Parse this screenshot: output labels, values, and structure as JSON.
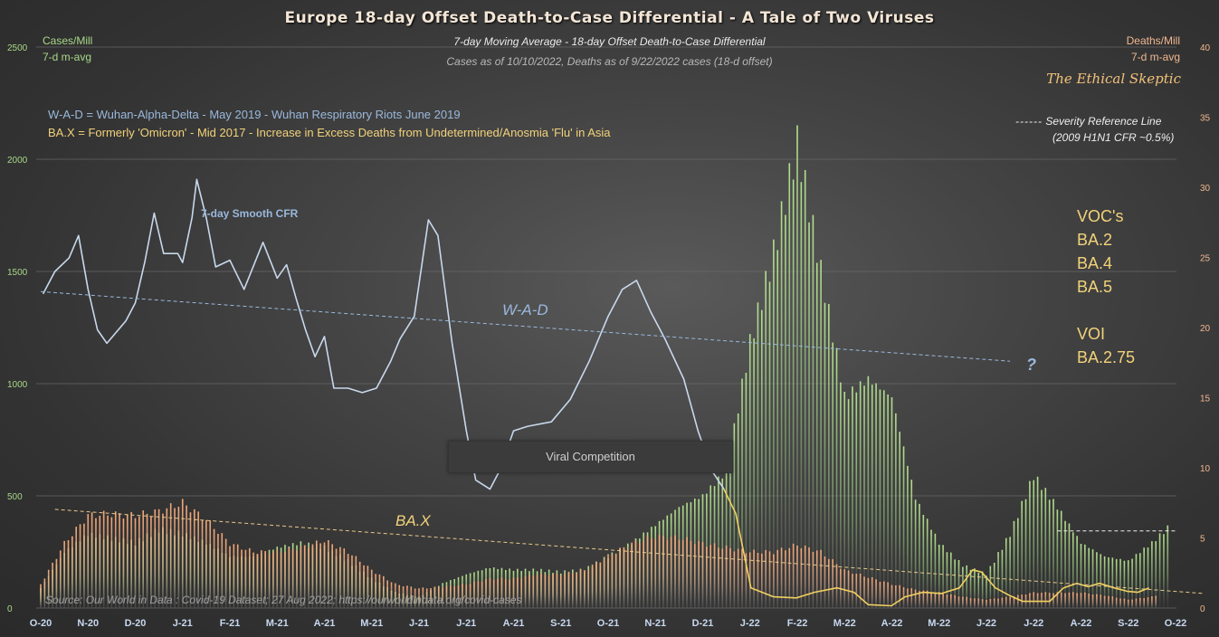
{
  "header": {
    "title": "Europe  18-day  Offset  Death-to-Case  Differential  - A  Tale  of  Two  Viruses",
    "subtitle": "7-day Moving Average - 18-day Offset Death-to-Case Differential",
    "as_of": "Cases as of 10/10/2022,  Deaths as of 9/22/2022  cases (18-d offset)",
    "brand": "The Ethical Skeptic"
  },
  "legend": {
    "wad": "W-A-D  =  Wuhan-Alpha-Delta - May 2019 - Wuhan Respiratory Riots June 2019",
    "bax": "BA.X  = Formerly  'Omicron' - Mid 2017 - Increase in Excess Deaths from Undetermined/Anosmia  'Flu' in Asia",
    "severity_1": "Severity Reference Line",
    "severity_2": "(2009 H1N1 CFR ~0.5%)"
  },
  "annotations": {
    "smooth_cfr": "7-day Smooth CFR",
    "wad_label": "W-A-D",
    "bax_label": "BA.X",
    "question": "?",
    "viral_competition": "Viral Competition",
    "source": "Source: Our World in Data : Covid-19 Dataset; 27 Aug 2022; https://ourworldindata.org/covid-cases",
    "voc": [
      "VOC's",
      "BA.2",
      "BA.4",
      "BA.5",
      "",
      "VOI",
      "BA.2.75"
    ]
  },
  "colors": {
    "cases": "#a8d888",
    "deaths": "#f0a878",
    "wad_line": "#c8d8ec",
    "bax_line": "#f0d060",
    "wad_text": "#9ab8dc",
    "bax_text": "#f2d27a"
  },
  "chart_data": {
    "type": "bar",
    "title": "Europe 18-day Offset Death-to-Case Differential - A Tale of Two Viruses",
    "ylabel_left": [
      "Cases/Mill",
      "7-d m-avg"
    ],
    "ylabel_right": [
      "Deaths/Mill",
      "7-d m-avg"
    ],
    "ylim_left": [
      0,
      2500
    ],
    "ylim_right": [
      0,
      40
    ],
    "yticks_left": [
      "0",
      "500",
      "1000",
      "1500",
      "2000",
      "2500"
    ],
    "yticks_right": [
      "0",
      "5",
      "10",
      "15",
      "20",
      "25",
      "30",
      "35",
      "40"
    ],
    "x_unit": "months since Oct 2020",
    "xticks": [
      "O-20",
      "N-20",
      "D-20",
      "J-21",
      "F-21",
      "M-21",
      "A-21",
      "M-21",
      "J-21",
      "J-21",
      "A-21",
      "S-21",
      "O-21",
      "N-21",
      "D-21",
      "J-22",
      "F-22",
      "M-22",
      "A-22",
      "M-22",
      "J-22",
      "J-22",
      "A-22",
      "S-22",
      "O-22"
    ],
    "grid": true,
    "series": [
      {
        "name": "Cases/Mill (7-d m-avg)",
        "axis": "left",
        "type": "bar",
        "x": [
          0,
          0.5,
          1,
          1.5,
          2,
          2.5,
          3,
          3.5,
          4,
          4.5,
          5,
          5.5,
          6,
          6.5,
          7,
          7.5,
          8,
          8.5,
          9,
          9.5,
          10,
          10.5,
          11,
          11.5,
          12,
          12.5,
          13,
          13.5,
          14,
          14.5,
          15,
          15.5,
          16,
          16.5,
          17,
          17.5,
          18,
          18.5,
          19,
          19.5,
          20,
          20.5,
          21,
          21.5,
          22,
          22.5,
          23,
          23.5,
          23.9
        ],
        "values": [
          90,
          250,
          330,
          310,
          290,
          350,
          330,
          290,
          230,
          230,
          270,
          290,
          270,
          210,
          130,
          70,
          50,
          110,
          150,
          180,
          170,
          170,
          160,
          170,
          230,
          290,
          370,
          450,
          500,
          610,
          1180,
          1580,
          2070,
          1500,
          940,
          1020,
          940,
          490,
          290,
          190,
          150,
          330,
          590,
          450,
          290,
          230,
          210,
          290,
          370
        ]
      },
      {
        "name": "Deaths/Mill (7-d m-avg, 18-d offset)",
        "axis": "right",
        "type": "bar",
        "x": [
          0,
          0.5,
          1,
          1.5,
          2,
          2.5,
          3,
          3.5,
          4,
          4.5,
          5,
          5.5,
          6,
          6.5,
          7,
          7.5,
          8,
          8.5,
          9,
          9.5,
          10,
          10.5,
          11,
          11.5,
          12,
          12.5,
          13,
          13.5,
          14,
          14.5,
          15,
          15.5,
          16,
          16.5,
          17,
          17.5,
          18,
          18.5,
          19,
          19.5,
          20,
          20.5,
          21,
          21.5,
          22,
          22.5,
          23,
          23.5,
          23.6
        ],
        "values": [
          1.7,
          4.6,
          6.6,
          6.7,
          6.6,
          6.9,
          7.5,
          6.3,
          4.6,
          4.0,
          4.0,
          4.3,
          4.8,
          4.0,
          2.7,
          1.7,
          1.4,
          1.5,
          1.7,
          2.1,
          2.1,
          2.4,
          2.4,
          2.7,
          3.7,
          4.6,
          5.1,
          5.0,
          4.6,
          4.3,
          4.0,
          4.0,
          4.5,
          4.0,
          2.7,
          2.2,
          1.7,
          1.3,
          1.1,
          0.8,
          0.6,
          0.8,
          1.1,
          1.1,
          1.1,
          0.9,
          0.6,
          0.8,
          0.9
        ]
      },
      {
        "name": "W-A-D 7-day Smooth CFR",
        "axis": "left",
        "type": "line",
        "x": [
          0.05,
          0.3,
          0.6,
          0.8,
          1.0,
          1.2,
          1.4,
          1.8,
          2.0,
          2.2,
          2.4,
          2.6,
          2.9,
          3.0,
          3.2,
          3.3,
          3.5,
          3.7,
          4.0,
          4.3,
          4.7,
          5.0,
          5.2,
          5.4,
          5.6,
          5.8,
          6.0,
          6.2,
          6.5,
          6.8,
          7.1,
          7.4,
          7.6,
          7.9,
          8.2,
          8.4,
          8.7,
          9.0,
          9.2,
          9.5,
          9.7,
          10.0,
          10.3,
          10.8,
          11.2,
          11.6,
          12.0,
          12.3,
          12.6,
          12.9,
          13.2,
          13.6,
          13.9,
          14.2,
          14.45
        ],
        "values": [
          1400,
          1500,
          1560,
          1660,
          1420,
          1240,
          1180,
          1280,
          1360,
          1540,
          1760,
          1580,
          1580,
          1540,
          1740,
          1910,
          1740,
          1520,
          1550,
          1420,
          1630,
          1470,
          1530,
          1380,
          1240,
          1120,
          1210,
          980,
          980,
          960,
          980,
          1100,
          1200,
          1300,
          1730,
          1660,
          1180,
          790,
          570,
          530,
          610,
          790,
          810,
          830,
          930,
          1100,
          1300,
          1420,
          1460,
          1320,
          1200,
          1020,
          790,
          610,
          530
        ]
      },
      {
        "name": "BA.X 7-day Smooth CFR",
        "axis": "left",
        "type": "line",
        "x": [
          14.45,
          14.7,
          15.02,
          15.5,
          15.98,
          16.36,
          16.84,
          17.2,
          17.5,
          17.99,
          18.28,
          18.66,
          19.05,
          19.43,
          19.71,
          19.9,
          20.19,
          20.5,
          20.77,
          21.34,
          21.63,
          21.91,
          22.15,
          22.39,
          22.7,
          22.97,
          23.2,
          23.44
        ],
        "values": [
          530,
          420,
          90,
          50,
          45,
          70,
          90,
          70,
          15,
          10,
          50,
          70,
          65,
          90,
          170,
          160,
          90,
          55,
          30,
          30,
          90,
          110,
          95,
          110,
          90,
          75,
          70,
          90
        ]
      },
      {
        "name": "W-A-D trend",
        "axis": "left",
        "type": "dashed",
        "x": [
          0,
          20.5
        ],
        "values": [
          1410,
          1100
        ]
      },
      {
        "name": "BA.X trend",
        "axis": "left",
        "type": "dashed",
        "x": [
          0.3,
          24.6
        ],
        "values": [
          440,
          65
        ]
      },
      {
        "name": "Severity Reference Line",
        "axis": "right",
        "type": "dashed",
        "x": [
          21.5,
          24
        ],
        "values": [
          5.5,
          5.5
        ]
      }
    ]
  }
}
